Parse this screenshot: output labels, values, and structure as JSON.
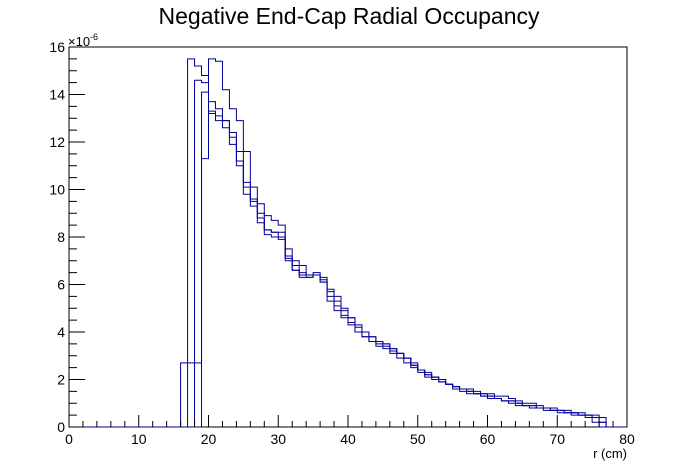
{
  "chart_data": {
    "type": "line",
    "title": "Negative End-Cap Radial Occupancy",
    "xlabel": "r (cm)",
    "ylabel": "",
    "y_multiplier": "×10",
    "y_exponent": "-6",
    "xlim": [
      0,
      80
    ],
    "ylim": [
      0,
      16
    ],
    "x_ticks": [
      0,
      10,
      20,
      30,
      40,
      50,
      60,
      70,
      80
    ],
    "y_ticks": [
      0,
      2,
      4,
      6,
      8,
      10,
      12,
      14,
      16
    ],
    "bin_width": 1,
    "bin_start": 0,
    "grid": false,
    "line_color": "#000099",
    "series": [
      {
        "values": [
          0,
          0,
          0,
          0,
          0,
          0,
          0,
          0,
          0,
          0,
          0,
          0,
          0,
          0,
          0,
          0,
          2.7,
          15.5,
          15.2,
          14.8,
          13.3,
          13.1,
          12.9,
          12.4,
          11.6,
          10.3,
          9.5,
          8.8,
          8.3,
          8.2,
          8.0,
          7.1,
          6.6,
          6.3,
          6.3,
          6.5,
          6.3,
          5.7,
          5.3,
          4.9,
          4.6,
          4.2,
          4.0,
          3.8,
          3.6,
          3.5,
          3.3,
          3.1,
          2.9,
          2.6,
          2.4,
          2.2,
          2.1,
          1.9,
          1.8,
          1.7,
          1.6,
          1.5,
          1.4,
          1.3,
          1.3,
          1.2,
          1.1,
          1.1,
          1.0,
          0.9,
          0.9,
          0.8,
          0.8,
          0.7,
          0.7,
          0.6,
          0.6,
          0.5,
          0.5,
          0.4,
          0.2,
          0,
          0,
          0
        ]
      },
      {
        "values": [
          0,
          0,
          0,
          0,
          0,
          0,
          0,
          0,
          0,
          0,
          0,
          0,
          0,
          0,
          0,
          0,
          0,
          2.7,
          14.6,
          14.5,
          13.2,
          12.9,
          12.6,
          11.9,
          11.0,
          9.8,
          9.3,
          8.6,
          8.1,
          8.0,
          7.9,
          7.0,
          6.6,
          6.4,
          6.3,
          6.4,
          6.2,
          5.5,
          5.1,
          4.7,
          4.4,
          4.0,
          3.8,
          3.6,
          3.4,
          3.3,
          3.1,
          2.9,
          2.7,
          2.5,
          2.3,
          2.1,
          2.0,
          1.9,
          1.8,
          1.6,
          1.5,
          1.4,
          1.4,
          1.3,
          1.2,
          1.2,
          1.1,
          1.0,
          0.9,
          0.9,
          0.8,
          0.8,
          0.7,
          0.7,
          0.6,
          0.6,
          0.5,
          0.5,
          0.4,
          0.2,
          0,
          0,
          0,
          0
        ]
      },
      {
        "values": [
          0,
          0,
          0,
          0,
          0,
          0,
          0,
          0,
          0,
          0,
          0,
          0,
          0,
          0,
          0,
          0,
          0,
          0,
          2.7,
          14.1,
          13.7,
          13.4,
          12.9,
          12.2,
          11.2,
          10.1,
          9.6,
          9.0,
          8.3,
          8.2,
          8.2,
          7.2,
          6.8,
          6.5,
          6.4,
          6.4,
          6.1,
          5.8,
          5.5,
          5.0,
          4.6,
          4.3,
          4.0,
          3.8,
          3.6,
          3.5,
          3.3,
          3.1,
          2.9,
          2.7,
          2.4,
          2.3,
          2.1,
          2.0,
          1.8,
          1.7,
          1.6,
          1.5,
          1.4,
          1.4,
          1.3,
          1.2,
          1.1,
          1.1,
          1.0,
          0.9,
          0.9,
          0.8,
          0.8,
          0.7,
          0.7,
          0.6,
          0.6,
          0.5,
          0.5,
          0.4,
          0.2,
          0,
          0,
          0
        ]
      },
      {
        "values": [
          0,
          0,
          0,
          0,
          0,
          0,
          0,
          0,
          0,
          0,
          0,
          0,
          0,
          0,
          0,
          0,
          0,
          0,
          0,
          11.3,
          15.5,
          15.4,
          14.2,
          13.4,
          12.9,
          11.6,
          10.1,
          9.4,
          8.9,
          8.7,
          8.5,
          7.5,
          7.0,
          6.8,
          6.4,
          6.4,
          6.1,
          5.3,
          4.9,
          4.6,
          4.3,
          4.0,
          3.8,
          3.6,
          3.5,
          3.4,
          3.2,
          3.1,
          2.9,
          2.6,
          2.4,
          2.2,
          2.1,
          2.0,
          1.8,
          1.7,
          1.6,
          1.6,
          1.5,
          1.4,
          1.4,
          1.3,
          1.3,
          1.2,
          1.1,
          1.0,
          1.0,
          0.9,
          0.8,
          0.8,
          0.7,
          0.7,
          0.6,
          0.6,
          0.5,
          0.5,
          0.4,
          0,
          0,
          0
        ]
      }
    ]
  }
}
